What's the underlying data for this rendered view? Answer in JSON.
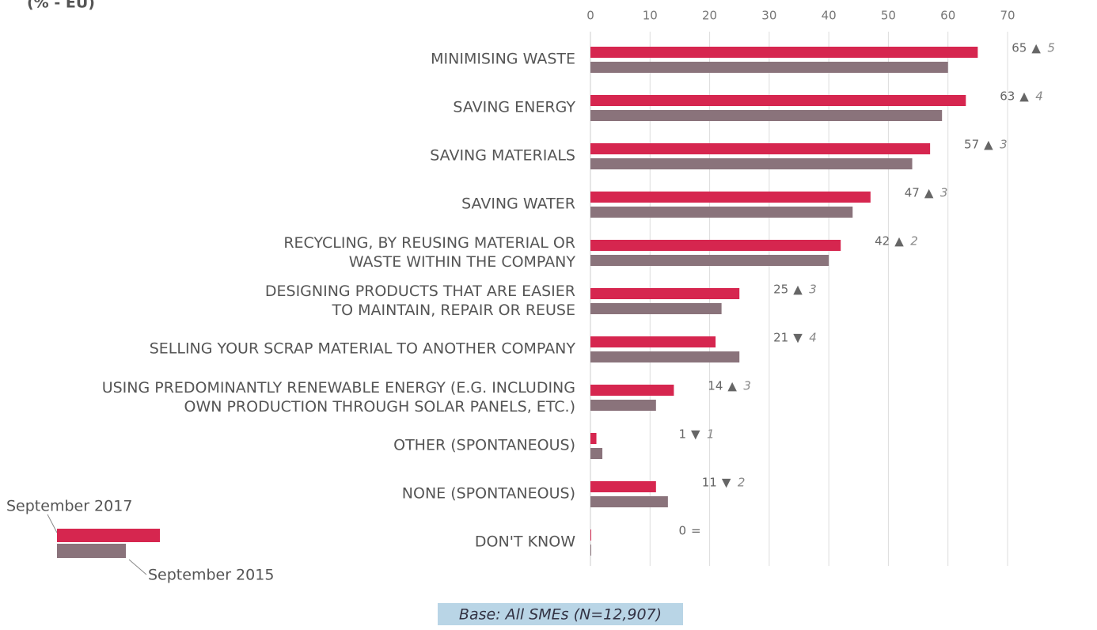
{
  "chart_data": {
    "type": "hbar",
    "subtitle": "(% - EU)",
    "categories": [
      "MINIMISING WASTE",
      "SAVING ENERGY",
      "SAVING MATERIALS",
      "SAVING WATER",
      "RECYCLING, BY REUSING MATERIAL OR\nWASTE WITHIN THE COMPANY",
      "DESIGNING PRODUCTS THAT ARE EASIER\nTO MAINTAIN, REPAIR OR REUSE",
      "SELLING YOUR SCRAP MATERIAL TO ANOTHER COMPANY",
      "USING PREDOMINANTLY RENEWABLE ENERGY (E.G. INCLUDING\nOWN PRODUCTION THROUGH SOLAR PANELS, ETC.)",
      "OTHER (SPONTANEOUS)",
      "NONE (SPONTANEOUS)",
      "DON'T KNOW"
    ],
    "series": [
      {
        "name": "September 2017",
        "color": "#d6264f",
        "values": [
          65,
          63,
          57,
          47,
          42,
          25,
          21,
          14,
          1,
          11,
          0
        ]
      },
      {
        "name": "September 2015",
        "color": "#8a737b",
        "values": [
          60,
          59,
          54,
          44,
          40,
          22,
          25,
          11,
          2,
          13,
          0
        ]
      }
    ],
    "change_symbols": [
      "▲",
      "▲",
      "▲",
      "▲",
      "▲",
      "▲",
      "▼",
      "▲",
      "▼",
      "▼",
      "="
    ],
    "changes": [
      5,
      4,
      3,
      3,
      2,
      3,
      4,
      3,
      1,
      2,
      null
    ],
    "xlim": [
      0,
      70
    ],
    "xticks": [
      0,
      10,
      20,
      30,
      40,
      50,
      60,
      70
    ],
    "grid": true,
    "note": "Base: All SMEs (N=12,907)"
  }
}
